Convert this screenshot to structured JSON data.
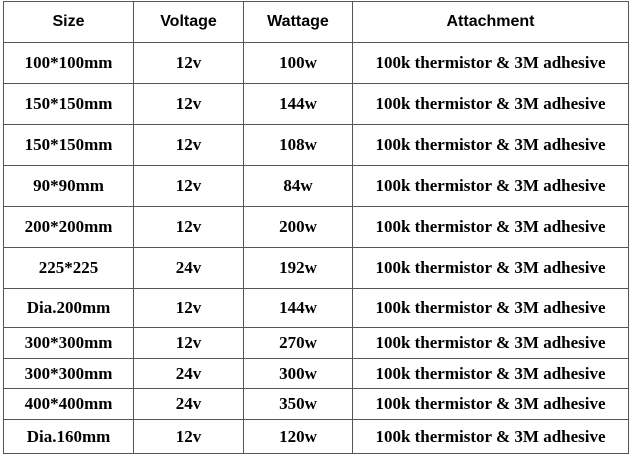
{
  "table": {
    "header": [
      "Size",
      "Voltage",
      "Wattage",
      "Attachment"
    ],
    "rows": [
      [
        "100*100mm",
        "12v",
        "100w",
        "100k thermistor & 3M adhesive"
      ],
      [
        "150*150mm",
        "12v",
        "144w",
        "100k thermistor & 3M adhesive"
      ],
      [
        "150*150mm",
        "12v",
        "108w",
        "100k thermistor & 3M adhesive"
      ],
      [
        "90*90mm",
        "12v",
        "84w",
        "100k thermistor & 3M adhesive"
      ],
      [
        "200*200mm",
        "12v",
        "200w",
        "100k thermistor & 3M adhesive"
      ],
      [
        "225*225",
        "24v",
        "192w",
        "100k thermistor & 3M adhesive"
      ],
      [
        "Dia.200mm",
        "12v",
        "144w",
        "100k thermistor & 3M adhesive"
      ],
      [
        "300*300mm",
        "12v",
        "270w",
        "100k thermistor & 3M adhesive"
      ],
      [
        "300*300mm",
        "24v",
        "300w",
        "100k thermistor & 3M adhesive"
      ],
      [
        "400*400mm",
        "24v",
        "350w",
        "100k thermistor & 3M adhesive"
      ],
      [
        "Dia.160mm",
        "12v",
        "120w",
        "100k thermistor & 3M adhesive"
      ]
    ]
  }
}
